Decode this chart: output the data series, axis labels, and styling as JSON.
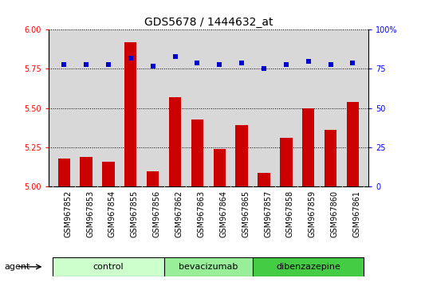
{
  "title": "GDS5678 / 1444632_at",
  "samples": [
    "GSM967852",
    "GSM967853",
    "GSM967854",
    "GSM967855",
    "GSM967856",
    "GSM967862",
    "GSM967863",
    "GSM967864",
    "GSM967865",
    "GSM967857",
    "GSM967858",
    "GSM967859",
    "GSM967860",
    "GSM967861"
  ],
  "transformed_count": [
    5.18,
    5.19,
    5.16,
    5.92,
    5.1,
    5.57,
    5.43,
    5.24,
    5.39,
    5.09,
    5.31,
    5.5,
    5.36,
    5.54
  ],
  "percentile_rank": [
    78,
    78,
    78,
    82,
    77,
    83,
    79,
    78,
    79,
    75,
    78,
    80,
    78,
    79
  ],
  "groups": [
    {
      "label": "control",
      "start": 0,
      "end": 5,
      "color": "#ccffcc"
    },
    {
      "label": "bevacizumab",
      "start": 5,
      "end": 9,
      "color": "#99ee99"
    },
    {
      "label": "dibenzazepine",
      "start": 9,
      "end": 14,
      "color": "#44cc44"
    }
  ],
  "ylim_left": [
    5.0,
    6.0
  ],
  "yticks_left": [
    5.0,
    5.25,
    5.5,
    5.75,
    6.0
  ],
  "ylim_right": [
    0,
    100
  ],
  "yticks_right": [
    0,
    25,
    50,
    75,
    100
  ],
  "bar_color": "#cc0000",
  "dot_color": "#0000cc",
  "bar_width": 0.55,
  "background_color": "#ffffff",
  "plot_bg_color": "#d8d8d8",
  "xtick_bg_color": "#cccccc",
  "dotted_line_color": "#000000",
  "title_fontsize": 10,
  "tick_fontsize": 7,
  "label_fontsize": 8,
  "group_fontsize": 8
}
